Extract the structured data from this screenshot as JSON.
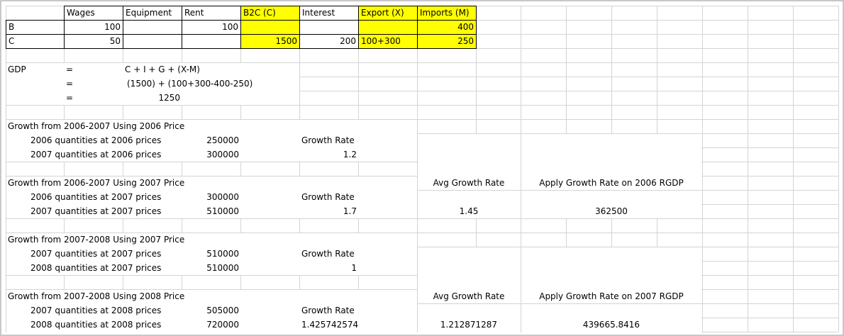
{
  "header": {
    "wages": "Wages",
    "equipment": "Equipment",
    "rent": "Rent",
    "b2c": "B2C (C)",
    "interest": "Interest",
    "export": "Export (X)",
    "imports": "Imports (M)"
  },
  "rowB": {
    "label": "B",
    "wages": "100",
    "rent": "100",
    "imports": "400"
  },
  "rowC": {
    "label": "C",
    "wages": "50",
    "b2c": "1500",
    "interest": "200",
    "export": "100+300",
    "imports": "250"
  },
  "gdp": {
    "label": "GDP",
    "eq1": "=",
    "formula": "C + I + G + (X-M)",
    "eq2": "=",
    "expanded": "(1500) + (100+300-400-250)",
    "eq3": "=",
    "result": "1250"
  },
  "s1": {
    "title": "Growth from 2006-2007 Using 2006 Price",
    "r1_label": "2006 quantities at 2006 prices",
    "r1_value": "250000",
    "r2_label": "2007 quantities at 2006 prices",
    "r2_value": "300000",
    "gr_label": "Growth Rate",
    "gr_value": "1.2"
  },
  "s2": {
    "title": "Growth from 2006-2007 Using 2007 Price",
    "r1_label": "2006 quantities at 2007 prices",
    "r1_value": "300000",
    "r2_label": "2007 quantities at 2007 prices",
    "r2_value": "510000",
    "gr_label": "Growth Rate",
    "gr_value": "1.7",
    "avg_label": "Avg Growth Rate",
    "avg_value": "1.45",
    "apply_label": "Apply Growth Rate on 2006 RGDP",
    "apply_value": "362500"
  },
  "s3": {
    "title": "Growth from 2007-2008 Using 2007 Price",
    "r1_label": "2007 quantities at 2007 prices",
    "r1_value": "510000",
    "r2_label": "2008 quantities at 2007 prices",
    "r2_value": "510000",
    "gr_label": "Growth Rate",
    "gr_value": "1"
  },
  "s4": {
    "title": "Growth from 2007-2008 Using 2008 Price",
    "r1_label": "2007 quantities at 2008 prices",
    "r1_value": "505000",
    "r2_label": "2008 quantities at 2008 prices",
    "r2_value": "720000",
    "gr_label": "Growth Rate",
    "gr_value": "1.425742574",
    "avg_label": "Avg Growth Rate",
    "avg_value": "1.212871287",
    "apply_label": "Apply Growth Rate on 2007 RGDP",
    "apply_value": "439665.8416"
  },
  "colors": {
    "highlight": "#ffff00",
    "grid": "#d4d4d4",
    "border": "#000000"
  }
}
